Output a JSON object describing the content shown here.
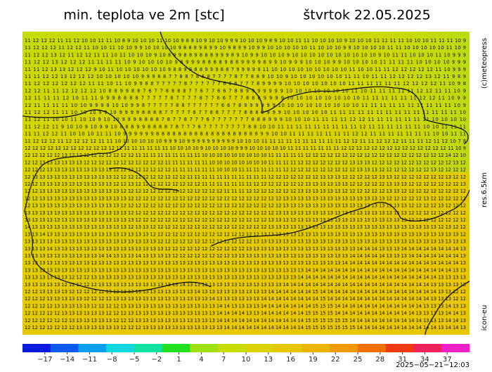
{
  "header": {
    "title": "min. teplota ve 2m [stc]",
    "date": "štvrtok 22.05.2025"
  },
  "side": {
    "copyright": "(c)meteopress",
    "resolution": "res.6.5km",
    "model": "icon-eu"
  },
  "footer": {
    "timestamp": "2025−05−21−12:03"
  },
  "grid": {
    "rows": [
      "11 12 12 12 11 11 12 10 10 11 11 10 8 9 10 10 10 11 10 10 9 8 9 10 9 10 10 9 9 9 10 10 10 9 8 9 10 10 11 11 10 10 10 10 9 10 10 10 11 11 11 11 10 10 10 11 11 11 10 9",
      "11 12 12 12 11 12 12 11 10 10 11 10 10 9 9 10 10 10 10 9 8 8 9 9 8 9 9 10 9 8 9 9 10 9 9 10 10 10 10 10 11 10 10 10 9 9 10 10 10 10 11 11 10 10 10 10 10 11 10 9",
      "11 12 12 13 12 11 12 12 11 11 10 11 10 10 10 9 10 8 9 9 8 8 9 8 8 8 9 9 9 8 9 10 9 9 10 10 10 9 10 10 10 10 10 10 10 10 10 10 9 10 11 11 10 10 10 11 10 9 9 9",
      "11 12 12 13 12 12 12 11 11 11 11 10 9 10 10 10 10 9 8 9 9 9 8 8 8 8 9 8 8 9 9 9 9 8 9 9 10 9 9 9 10 10 10 9 9 10 10 10 10 11 11 11 11 10 10 10 10 9 9 9",
      "11 11 12 13 13 12 12 12 9 10 11 10 10 10 10 10 10 9 8 8 9 9 8 8 9 9 9 8 8 7 9 9 9 9 9 11 10 10 10 10 10 10 10 10 10 11 10 10 11 11 12 12 12 12 12 11 10 9 9 9",
      "11 11 12 12 13 12 12 12 10 10 10 10 10 9 9 9 8 8 7 7 8 8 7 8 8 8 7 7 7 7 8 7 7 8 8 9 10 10 9 10 10 10 10 10 10 11 11 10 11 11 12 12 12 12 13 12 11 9 8 9",
      "11 12 12 12 12 12 12 11 11 10 11 10 9 9 8 8 7 7 7 7 7 8 7 7 7 7 7 7 6 6 6 7 7 7 8 9 9 9 9 10 10 10 10 10 10 10 11 11 11 11 11 11 12 12 12 12 11 10 9 8",
      "12 12 11 11 12 12 12 12 10 8 8 9 9 8 8 7 6 7 7 8 8 8 8 7 7 6 7 7 6 6 7 8 8 9 9 9 9 9 9 9 10 10 10 10 10 10 10 11 10 11 11 11 11 11 12 12 11 11 10 9",
      "12 11 11 11 12 10 11 11 9 9 9 8 8 8 8 7 7 7 7 7 8 7 7 7 7 8 7 7 6 6 7 7 7 8 8 8 9 9 9 9 10 10 10 10 10 10 10 10 11 11 11 11 11 11 12 12 11 10 9 9",
      "12 11 11 11 11 10 10 9 9 9 9 10 10 9 9 8 7 7 7 7 7 8 8 7 7 7 7 7 7 6 6 7 8 9 9 9 9 9 9 10 10 10 10 10 10 10 10 10 11 11 11 11 11 11 11 11 11 11 10 9",
      "11 12 12 11 11 10 10 10 9 9 10 9 9 9 9 8 8 8 8 7 7 7 7 7 6 7 7 6 6 7 7 7 7 8 8 8 8 9 9 9 10 10 10 10 10 11 11 11 11 11 11 11 11 11 11 11 11 11 11 10",
      "11 12 11 10 10 11 10 10 9 10 10 9 9 9 8 8 8 8 7 8 7 7 8 7 7 7 6 7 7 7 7 7 7 7 8 8 8 9 9 9 10 10 10 11 11 11 11 12 12 11 11 11 11 11 11 11 10 10 10 10",
      "11 12 12 11 9 10 10 9 10 9 9 10 8 8 8 9 9 8 8 8 8 7 8 7 7 7 6 7 7 7 7 7 7 7 7 8 8 10 10 11 11 11 11 11 11 11 11 11 12 11 11 11 11 11 11 10 10 11 11 11",
      "11 11 12 12 11 10 10 10 11 11 10 9 9 9 9 9 9 8 8 8 8 8 8 8 8 8 8 8 8 8 8 8 8 8 8 8 9 9 10 10 11 11 11 11 11 11 11 12 12 11 11 11 11 11 11 11 10 10 11 11",
      "11 12 12 12 11 12 12 12 12 11 11 10 10 10 10 10 10 9 9 9 10 9 9 9 9 9 9 9 9 9 9 10 10 10 11 11 11 11 11 11 11 11 11 11 12 12 11 11 12 12 12 11 11 11 12 11 12 10 7 8",
      "12 12 12 12 12 12 12 12 12 12 12 12 11 11 11 11 11 11 11 10 10 10 10 9 10 10 10 10 9 9 9 10 10 10 10 10 11 11 11 11 11 11 11 12 12 12 12 12 12 12 12 12 12 12 12 12 12 11 10 9",
      "12 12 12 12 12 13 12 12 12 12 12 12 12 12 12 11 11 11 11 11 11 11 11 11 10 10 10 10 10 10 10 10 10 11 11 11 11 11 12 12 12 12 12 12 12 12 12 12 12 12 12 12 12 12 12 12 12 14 12 10",
      "12 12 13 13 13 13 13 13 12 12 12 12 12 12 12 12 12 12 12 11 11 11 11 11 11 10 10 10 10 10 10 10 10 11 11 11 11 12 12 12 12 12 12 12 13 13 13 12 12 12 12 12 12 12 12 12 12 12 13 12",
      "12 12 12 13 13 13 13 13 13 13 13 13 12 12 12 12 12 12 12 12 11 11 11 11 11 11 10 10 10 11 11 11 11 11 11 12 12 12 12 12 12 12 12 12 12 13 13 13 12 12 12 12 12 12 12 13 12 12 12 12",
      "12 13 13 13 13 13 13 13 13 13 13 13 12 12 12 12 12 12 12 12 12 12 11 11 11 11 11 11 11 11 11 11 11 12 12 12 12 12 12 12 13 13 13 12 12 12 12 12 13 13 12 12 12 12 12 12 12 13 12 12",
      "12 12 13 13 13 13 13 13 13 13 13 13 12 12 13 12 12 12 12 12 12 12 12 12 11 11 11 11 11 11 11 12 12 12 12 12 12 12 13 13 13 13 13 13 12 12 12 12 12 13 13 13 12 12 12 12 12 12 12 13",
      "12 12 13 13 13 13 13 13 13 13 13 13 13 12 12 12 12 12 12 12 12 12 12 12 12 12 12 11 11 11 12 12 12 12 12 12 12 13 13 13 13 13 13 12 12 12 12 12 12 13 13 12 12 12 12 12 12 12 12 12",
      "12 12 13 13 13 13 13 13 13 13 13 13 13 13 12 12 12 12 12 12 12 12 12 12 12 12 12 12 12 12 12 12 12 12 12 13 13 13 13 13 13 13 13 13 13 13 13 13 13 12 12 12 12 12 13 12 12 12 12 12",
      "12 13 13 13 13 13 13 13 13 13 13 13 13 12 12 12 12 12 12 12 12 12 12 12 12 12 12 12 12 12 12 12 12 12 12 13 13 13 13 13 13 13 13 13 13 13 13 13 13 13 13 13 12 12 12 12 13 12 12 12",
      "13 13 13 13 13 13 13 13 13 13 13 13 13 13 12 12 12 12 12 12 12 12 12 12 12 12 12 12 12 12 12 12 12 12 13 13 13 13 13 13 13 13 13 13 13 13 13 13 13 13 13 13 12 12 12 12 12 12 12 12",
      "13 13 13 13 13 13 13 13 13 13 13 13 13 13 13 12 12 12 12 12 12 12 12 12 12 12 12 12 12 12 12 12 12 13 13 13 13 13 13 13 13 13 13 13 13 13 13 13 13 13 13 13 13 13 12 12 12 12 12 12",
      "14 13 13 13 13 13 13 13 13 13 13 13 13 13 12 13 13 12 12 12 12 12 12 12 12 12 12 12 12 12 12 12 12 13 13 13 13 13 13 13 13 13 13 13 13 13 13 13 13 13 13 13 13 13 13 13 12 13 12 12",
      "13 13 14 13 13 13 13 13 13 13 13 13 13 13 13 13 13 12 12 12 12 12 12 12 12 12 12 12 12 12 12 12 13 13 13 13 13 13 13 13 13 13 13 13 13 13 13 13 13 13 13 13 13 13 13 13 13 13 13 12",
      "13 13 13 13 13 13 13 13 13 13 13 13 13 13 13 13 13 13 12 12 12 12 12 12 12 12 12 12 12 12 12 13 13 13 13 13 13 13 13 13 13 13 13 13 13 13 13 13 13 13 13 13 13 13 13 13 13 13 13 13",
      "13 13 13 14 13 13 13 13 13 13 13 13 13 13 13 13 13 13 13 12 12 12 12 12 12 12 12 12 12 12 13 13 13 13 13 13 13 13 13 13 13 13 13 13 13 14 14 14 13 13 13 14 14 14 14 14 14 14 14 13",
      "13 13 13 13 13 13 13 13 13 13 14 14 13 13 13 14 13 13 13 13 12 12 12 12 12 12 12 12 13 13 13 13 13 13 13 13 13 13 13 13 13 13 13 13 14 14 14 14 14 13 13 13 14 14 14 14 14 14 14 13",
      "13 13 13 13 13 13 13 13 13 13 13 13 13 13 13 13 13 13 13 13 13 13 13 13 13 13 13 13 13 13 13 13 13 13 13 13 13 13 13 13 13 13 13 14 14 14 14 14 14 14 14 14 14 14 14 14 14 14 14 13",
      "13 13 13 13 13 13 13 13 13 13 13 13 13 13 13 13 13 13 13 13 13 13 13 13 13 13 13 13 13 13 13 13 13 13 13 13 13 13 14 14 14 14 14 14 14 14 14 14 14 14 14 14 14 14 14 14 14 14 13 13",
      "13 13 13 13 13 13 12 12 12 13 13 13 13 13 13 13 13 13 13 13 13 13 13 13 13 13 13 13 13 13 13 13 13 13 13 13 13 14 14 14 14 14 14 14 14 14 14 14 14 14 14 14 14 14 14 14 13 13 13 13",
      "13 13 13 13 13 12 12 12 12 12 13 13 13 13 13 13 13 13 13 13 13 14 13 13 13 13 13 13 13 13 13 13 13 13 13 14 14 14 14 14 14 14 14 14 14 14 14 14 14 14 14 14 14 14 14 13 13 13 13 13",
      "12 12 13 13 13 13 12 12 12 12 12 13 13 13 13 13 13 13 13 13 13 13 13 14 13 13 13 13 13 13 13 13 13 14 14 14 14 14 14 15 14 14 14 14 14 14 14 14 14 14 14 14 14 14 14 14 13 13 12 12",
      "12 12 12 13 13 13 13 13 12 12 12 12 13 13 13 13 13 13 13 13 13 13 13 13 13 14 13 13 13 13 13 13 14 14 14 14 14 14 14 14 15 14 14 14 14 14 14 14 14 14 14 14 14 14 14 13 13 13 12 12",
      "12 12 12 12 13 13 13 13 13 12 12 12 12 13 13 13 13 13 13 13 13 13 13 13 13 13 14 14 13 13 13 13 14 14 14 14 14 14 14 15 15 15 14 14 14 14 14 14 14 14 14 14 14 14 13 13 13 14 13 13",
      "12 12 12 12 12 13 13 13 13 13 13 12 12 12 13 13 13 13 13 13 13 13 13 13 13 13 14 14 14 14 13 13 14 14 14 14 14 14 15 15 15 15 14 14 14 14 14 14 14 14 14 14 14 13 13 13 13 14 14 13",
      "12 12 12 12 12 12 13 13 13 13 13 13 12 12 12 13 13 13 13 13 13 13 13 13 13 13 14 14 14 14 14 14 14 14 14 14 14 14 15 15 15 15 15 15 14 14 14 14 14 14 14 14 14 14 13 13 13 14 14 13",
      "12 12 12 12 12 12 12 13 13 13 13 13 13 12 12 12 13 13 13 13 13 13 13 13 13 13 13 14 14 14 14 14 14 14 14 14 14 14 15 15 15 15 15 15 15 14 14 14 14 14 14 14 14 14 14 14 13 14 14 13"
    ]
  },
  "colorbar": {
    "range": [
      -20,
      40
    ],
    "ticks": [
      {
        "value": -17,
        "label": "−17"
      },
      {
        "value": -14,
        "label": "−14"
      },
      {
        "value": -11,
        "label": "−11"
      },
      {
        "value": -8,
        "label": "−8"
      },
      {
        "value": -5,
        "label": "−5"
      },
      {
        "value": -2,
        "label": "−2"
      },
      1,
      4,
      7,
      10,
      13,
      16,
      19,
      22,
      25,
      28,
      31,
      34,
      37
    ],
    "colors": [
      "#0a1ae0",
      "#0a5af0",
      "#0aa0f0",
      "#10d8e0",
      "#10e0a0",
      "#20e020",
      "#a0e010",
      "#c8dc00",
      "#dcd200",
      "#e6c600",
      "#ecb400",
      "#f09a00",
      "#f27000",
      "#f23a10",
      "#f0205a",
      "#f020c8"
    ]
  }
}
